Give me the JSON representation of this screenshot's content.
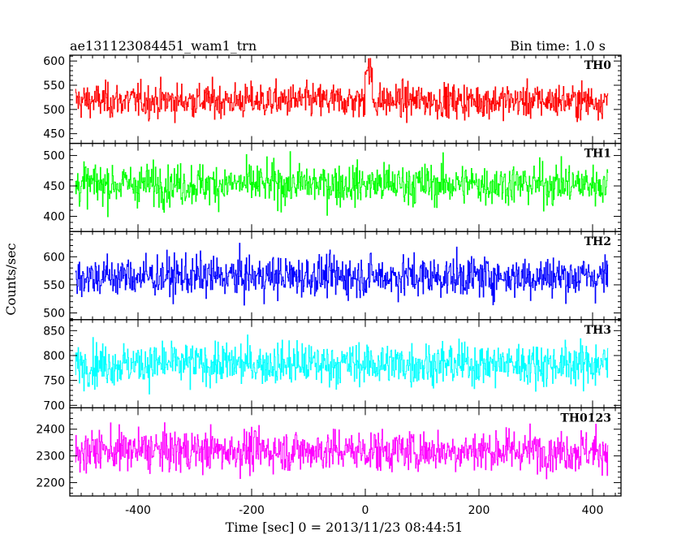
{
  "chart_data": {
    "type": "line",
    "title_left": "ae131123084451_wam1_trn",
    "title_right": "Bin time: 1.0 s",
    "xlabel": "Time [sec] 0 = 2013/11/23 08:44:51",
    "ylabel": "Counts/sec",
    "xlim": [
      -520,
      450
    ],
    "xticks": [
      -400,
      -200,
      0,
      200,
      400
    ],
    "data_x_range": [
      -510,
      427
    ],
    "bin_time_s": 1.0,
    "grid": false,
    "panels": [
      {
        "name": "TH0",
        "color": "#ff0000",
        "ylim": [
          430,
          612
        ],
        "yticks": [
          450,
          500,
          550,
          600
        ],
        "mean": 518,
        "noise_sd": 25,
        "burst": {
          "t": [
            0,
            12
          ],
          "peak": 595
        }
      },
      {
        "name": "TH1",
        "color": "#00ff00",
        "ylim": [
          375,
          520
        ],
        "yticks": [
          400,
          450,
          500
        ],
        "mean": 453,
        "noise_sd": 24
      },
      {
        "name": "TH2",
        "color": "#0000ff",
        "ylim": [
          488,
          645
        ],
        "yticks": [
          500,
          550,
          600
        ],
        "mean": 565,
        "noise_sd": 26
      },
      {
        "name": "TH3",
        "color": "#00ffff",
        "ylim": [
          695,
          872
        ],
        "yticks": [
          700,
          750,
          800,
          850
        ],
        "mean": 783,
        "noise_sd": 30
      },
      {
        "name": "TH0123",
        "color": "#ff00ff",
        "ylim": [
          2150,
          2480
        ],
        "yticks": [
          2200,
          2300,
          2400
        ],
        "mean": 2320,
        "noise_sd": 55
      }
    ]
  }
}
